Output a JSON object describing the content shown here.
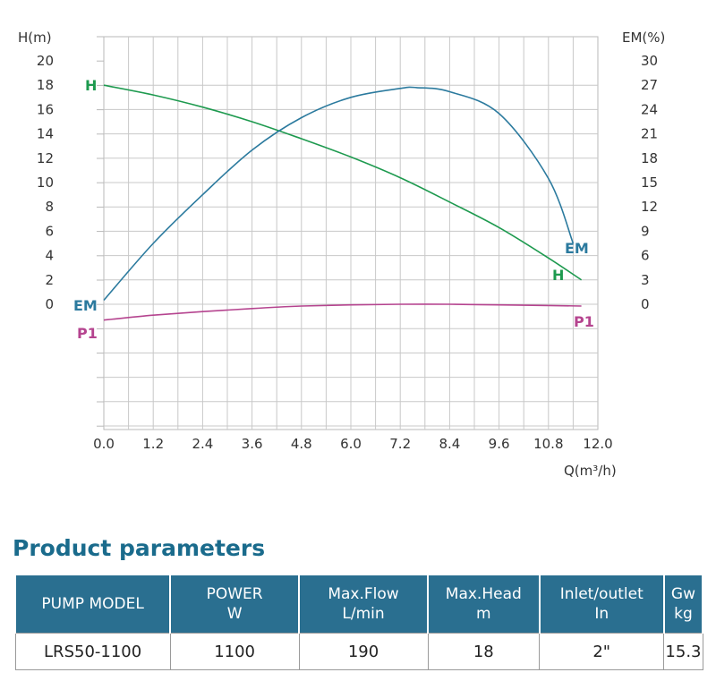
{
  "chart_data": {
    "type": "line",
    "y_left_label": "H(m)",
    "y_right_label": "EM(%)",
    "x_label": "Q(m³/h)",
    "x_ticks": [
      "0.0",
      "1.2",
      "2.4",
      "3.6",
      "4.8",
      "6.0",
      "7.2",
      "8.4",
      "9.6",
      "10.8",
      "12.0"
    ],
    "y_left_ticks": [
      "0",
      "2",
      "4",
      "6",
      "8",
      "10",
      "12",
      "14",
      "16",
      "18",
      "20"
    ],
    "y_right_ticks": [
      "0",
      "3",
      "6",
      "9",
      "12",
      "15",
      "18",
      "21",
      "24",
      "27",
      "30"
    ],
    "xlim": [
      0,
      12
    ],
    "ylim_left": [
      0,
      20
    ],
    "ylim_right": [
      0,
      30
    ],
    "grid": true,
    "series": [
      {
        "name": "H",
        "axis": "left",
        "color": "#1e9a4f",
        "x": [
          0,
          1.2,
          2.4,
          3.6,
          4.8,
          6.0,
          7.2,
          8.4,
          9.6,
          10.8,
          11.6
        ],
        "y": [
          18.0,
          17.2,
          16.2,
          15.0,
          13.6,
          12.1,
          10.4,
          8.4,
          6.3,
          3.8,
          2.0
        ]
      },
      {
        "name": "EM",
        "axis": "right",
        "color": "#2b7a9e",
        "x": [
          0,
          1.2,
          2.4,
          3.6,
          4.8,
          6.0,
          7.2,
          7.6,
          8.4,
          9.6,
          10.8,
          11.4
        ],
        "y": [
          0.5,
          7.5,
          13.5,
          19.0,
          23.0,
          25.5,
          26.6,
          26.7,
          26.2,
          23.5,
          15.5,
          7.5
        ]
      },
      {
        "name": "P1",
        "axis": "left",
        "color": "#b5448f",
        "x": [
          0,
          1.2,
          2.4,
          3.6,
          4.8,
          6.0,
          7.2,
          8.4,
          9.6,
          10.8,
          11.6
        ],
        "y": [
          -1.3,
          -0.9,
          -0.6,
          -0.35,
          -0.15,
          -0.05,
          0.0,
          0.0,
          -0.05,
          -0.1,
          -0.15
        ]
      }
    ],
    "curve_labels": {
      "H_left": "H",
      "H_right": "H",
      "EM_left": "EM",
      "EM_right": "EM",
      "P1_left": "P1",
      "P1_right": "P1"
    }
  },
  "section_title": "Product parameters",
  "table": {
    "headers": [
      {
        "line1": "PUMP MODEL",
        "line2": ""
      },
      {
        "line1": "POWER",
        "line2": "W"
      },
      {
        "line1": "Max.Flow",
        "line2": "L/min"
      },
      {
        "line1": "Max.Head",
        "line2": "m"
      },
      {
        "line1": "Inlet/outlet",
        "line2": "In"
      },
      {
        "line1": "Gw",
        "line2": "kg"
      }
    ],
    "row": [
      "LRS50-1100",
      "1100",
      "190",
      "18",
      "2\"",
      "15.3"
    ]
  }
}
